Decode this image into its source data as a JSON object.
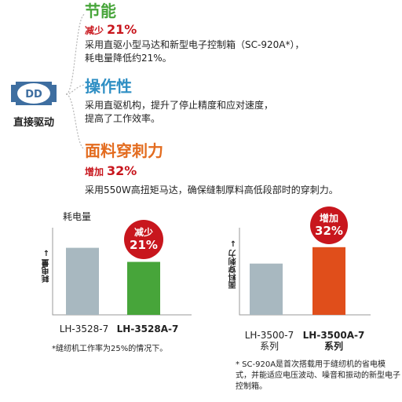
{
  "icon": {
    "text": "DD",
    "label": "直接驱动",
    "color": "#3e6ea0"
  },
  "sections": [
    {
      "title": "节能",
      "tag": "减少",
      "value": "21%",
      "lines": [
        "采用直驱小型马达和新型电子控制箱（SC-920A*），",
        "耗电量降低约21%。"
      ]
    },
    {
      "title": "操作性",
      "lines": [
        "采用直驱机构，提升了停止精度和应对速度，",
        "提高了工作效率。"
      ]
    },
    {
      "title": "面料穿刺力",
      "tag": "增加",
      "value": "32%",
      "lines": [
        "采用550W高扭矩马达，确保缝制厚料高低段部时的穿刺力。"
      ]
    }
  ],
  "chart_data": [
    {
      "type": "bar",
      "title": "耗电量",
      "ylabel": "耗电量",
      "categories": [
        "LH-3528-7",
        "LH-3528A-7"
      ],
      "series": [
        {
          "values": [
            100,
            79
          ]
        }
      ],
      "ylim": [
        0,
        130
      ],
      "colors": [
        "#a8b8c0",
        "#47a53a"
      ],
      "badge": {
        "line1": "减少",
        "line2": "21%",
        "color": "#c8161d"
      },
      "note": "*缝纫机工作率为25%的情况下。"
    },
    {
      "type": "bar",
      "ylabel": "面料穿刺力",
      "categories": [
        "LH-3500-7\n系列",
        "LH-3500A-7\n系列"
      ],
      "series": [
        {
          "values": [
            100,
            132
          ]
        }
      ],
      "ylim": [
        0,
        170
      ],
      "colors": [
        "#a8b8c0",
        "#e04e1b"
      ],
      "badge": {
        "line1": "增加",
        "line2": "32%",
        "color": "#c8161d"
      }
    }
  ],
  "footnote": "* SC-920A是首次搭载用于缝纫机的省电模式，并能适应电压波动、噪音和振动的新型电子控制箱。"
}
